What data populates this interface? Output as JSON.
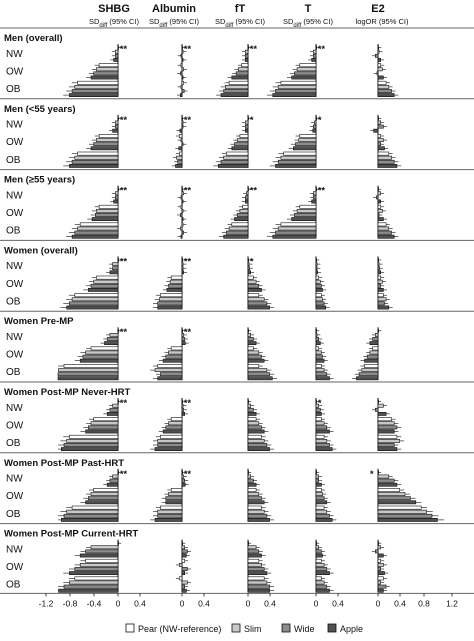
{
  "chart_data": {
    "type": "bar",
    "orientation": "horizontal",
    "columns": [
      {
        "id": "shbg",
        "title": "SHBG",
        "subtitle": "SD",
        "subtitle_sub": "diff",
        "subtitle_rest": " (95% CI)",
        "zero": 0,
        "scale": 1
      },
      {
        "id": "albumin",
        "title": "Albumin",
        "subtitle": "SD",
        "subtitle_sub": "diff",
        "subtitle_rest": " (95% CI)",
        "zero": 0,
        "scale": 1
      },
      {
        "id": "ft",
        "title": "fT",
        "subtitle": "SD",
        "subtitle_sub": "diff",
        "subtitle_rest": " (95% CI)",
        "zero": 0,
        "scale": 1
      },
      {
        "id": "t",
        "title": "T",
        "subtitle": "SD",
        "subtitle_sub": "diff",
        "subtitle_rest": " (95% CI)",
        "zero": 0,
        "scale": 1
      },
      {
        "id": "e2",
        "title": "E2",
        "subtitle": "logOR (95% CI)",
        "subtitle_sub": "",
        "subtitle_rest": "",
        "zero": 0,
        "scale": 1
      }
    ],
    "x_ticks": [
      "-1.2",
      "-0.8",
      "-0.4",
      "0",
      "0.4",
      "0.4",
      "0.8",
      "1.2"
    ],
    "x_tick_values": [
      -1.2,
      -0.8,
      -0.4,
      0,
      0.4,
      0.4,
      0.8,
      1.2
    ],
    "categories": [
      "NW",
      "OW",
      "OB"
    ],
    "shape_series": [
      "Pear (NW-reference)",
      "Slim",
      "Wide",
      "Apple"
    ],
    "legend": [
      {
        "label": "Pear (NW-reference)",
        "color": "#ffffff"
      },
      {
        "label": "Slim",
        "color": "#c8c8c8"
      },
      {
        "label": "Wide",
        "color": "#8c8c8c"
      },
      {
        "label": "Apple",
        "color": "#505050"
      }
    ],
    "panels": [
      {
        "title": "Men (overall)",
        "sig": [
          "**",
          "**",
          "**",
          "**",
          ""
        ],
        "values": {
          "shbg": [
            [
              0,
              -0.05,
              -0.05,
              -0.08
            ],
            [
              -0.35,
              -0.4,
              -0.45,
              -0.5
            ],
            [
              -0.75,
              -0.8,
              -0.85,
              -0.9
            ]
          ],
          "albumin": [
            [
              0,
              0.02,
              -0.02,
              0.02
            ],
            [
              -0.02,
              0.03,
              -0.03,
              0.02
            ],
            [
              0.03,
              -0.02,
              0.04,
              -0.03
            ]
          ],
          "ft": [
            [
              0,
              -0.05,
              -0.05,
              -0.05
            ],
            [
              -0.12,
              -0.18,
              -0.22,
              -0.3
            ],
            [
              -0.35,
              -0.42,
              -0.45,
              -0.5
            ]
          ],
          "t": [
            [
              0,
              -0.05,
              -0.05,
              -0.08
            ],
            [
              -0.3,
              -0.35,
              -0.4,
              -0.45
            ],
            [
              -0.65,
              -0.7,
              -0.75,
              -0.8
            ]
          ],
          "e2": [
            [
              0,
              0.02,
              -0.05,
              0.05
            ],
            [
              0.05,
              0.08,
              -0.02,
              0.1
            ],
            [
              0.15,
              0.2,
              0.25,
              0.3
            ]
          ]
        }
      },
      {
        "title": "Men (<55 years)",
        "sig": [
          "**",
          "**",
          "*",
          "*",
          ""
        ],
        "values": {
          "shbg": [
            [
              0,
              -0.05,
              -0.05,
              -0.1
            ],
            [
              -0.35,
              -0.4,
              -0.45,
              -0.5
            ],
            [
              -0.75,
              -0.8,
              -0.85,
              -0.9
            ]
          ],
          "albumin": [
            [
              0,
              0.02,
              0.02,
              -0.04
            ],
            [
              -0.05,
              -0.02,
              0.02,
              -0.06
            ],
            [
              -0.05,
              -0.1,
              -0.08,
              -0.12
            ]
          ],
          "ft": [
            [
              0,
              -0.05,
              -0.05,
              -0.05
            ],
            [
              -0.15,
              -0.2,
              -0.25,
              -0.3
            ],
            [
              -0.4,
              -0.45,
              -0.5,
              -0.55
            ]
          ],
          "t": [
            [
              0,
              -0.03,
              -0.05,
              -0.06
            ],
            [
              -0.3,
              -0.32,
              -0.38,
              -0.42
            ],
            [
              -0.6,
              -0.65,
              -0.7,
              -0.75
            ]
          ],
          "e2": [
            [
              0,
              0.05,
              0.1,
              -0.08
            ],
            [
              0.05,
              0.1,
              0.05,
              0.12
            ],
            [
              0.2,
              0.25,
              0.3,
              0.35
            ]
          ]
        }
      },
      {
        "title": "Men (≥55 years)",
        "sig": [
          "**",
          "**",
          "**",
          "**",
          ""
        ],
        "values": {
          "shbg": [
            [
              0,
              -0.05,
              -0.05,
              -0.08
            ],
            [
              -0.35,
              -0.4,
              -0.42,
              -0.48
            ],
            [
              -0.7,
              -0.75,
              -0.8,
              -0.85
            ]
          ],
          "albumin": [
            [
              0,
              0.03,
              -0.02,
              0.02
            ],
            [
              -0.02,
              0.02,
              -0.03,
              0.02
            ],
            [
              0.02,
              -0.03,
              0.03,
              -0.02
            ]
          ],
          "ft": [
            [
              0,
              -0.03,
              -0.05,
              -0.05
            ],
            [
              -0.1,
              -0.15,
              -0.2,
              -0.25
            ],
            [
              -0.3,
              -0.35,
              -0.4,
              -0.45
            ]
          ],
          "t": [
            [
              0,
              -0.05,
              -0.05,
              -0.08
            ],
            [
              -0.3,
              -0.35,
              -0.4,
              -0.45
            ],
            [
              -0.65,
              -0.7,
              -0.75,
              -0.8
            ]
          ],
          "e2": [
            [
              0,
              0.05,
              -0.03,
              0.05
            ],
            [
              0.05,
              0.08,
              0.02,
              0.1
            ],
            [
              0.15,
              0.2,
              0.25,
              0.3
            ]
          ]
        }
      },
      {
        "title": "Women (overall)",
        "sig": [
          "**",
          "**",
          "*",
          "",
          ""
        ],
        "values": {
          "shbg": [
            [
              0,
              -0.1,
              -0.1,
              -0.15
            ],
            [
              -0.4,
              -0.45,
              -0.5,
              -0.55
            ],
            [
              -0.8,
              -0.85,
              -0.9,
              -0.95
            ]
          ],
          "albumin": [
            [
              0,
              0.02,
              0.02,
              0.03
            ],
            [
              -0.2,
              -0.22,
              -0.25,
              -0.28
            ],
            [
              -0.4,
              -0.42,
              -0.45,
              -0.45
            ]
          ],
          "ft": [
            [
              0,
              0.02,
              0.03,
              0.05
            ],
            [
              0.1,
              0.15,
              0.2,
              0.25
            ],
            [
              0.2,
              0.3,
              0.35,
              0.4
            ]
          ],
          "t": [
            [
              0,
              0.02,
              0.02,
              0.03
            ],
            [
              0.05,
              0.08,
              0.1,
              0.12
            ],
            [
              0.1,
              0.12,
              0.15,
              0.18
            ]
          ],
          "e2": [
            [
              0,
              0.02,
              0.03,
              0.05
            ],
            [
              0.05,
              0.08,
              0.05,
              0.1
            ],
            [
              0.1,
              0.15,
              0.12,
              0.2
            ]
          ]
        }
      },
      {
        "title": "Women Pre-MP",
        "sig": [
          "**",
          "**",
          "",
          "",
          ""
        ],
        "values": {
          "shbg": [
            [
              0,
              -0.15,
              -0.2,
              -0.25
            ],
            [
              -0.5,
              -0.6,
              -0.65,
              -0.7
            ],
            [
              -1.0,
              -1.1,
              -1.15,
              -1.2
            ]
          ],
          "albumin": [
            [
              0,
              0.03,
              0.05,
              0.06
            ],
            [
              -0.2,
              -0.25,
              -0.3,
              -0.35
            ],
            [
              -0.45,
              -0.5,
              -0.4,
              -0.45
            ]
          ],
          "ft": [
            [
              0,
              0.05,
              0.1,
              0.15
            ],
            [
              0.1,
              0.2,
              0.25,
              0.3
            ],
            [
              0.2,
              0.35,
              0.4,
              0.45
            ]
          ],
          "t": [
            [
              0,
              0.02,
              0.05,
              0.08
            ],
            [
              0.05,
              0.1,
              0.12,
              0.15
            ],
            [
              0.1,
              0.15,
              0.2,
              0.25
            ]
          ],
          "e2": [
            [
              0,
              -0.05,
              -0.1,
              -0.15
            ],
            [
              -0.1,
              -0.15,
              -0.2,
              -0.25
            ],
            [
              -0.25,
              -0.3,
              -0.35,
              -0.4
            ]
          ]
        }
      },
      {
        "title": "Women Post-MP Never-HRT",
        "sig": [
          "**",
          "**",
          "",
          "*",
          ""
        ],
        "values": {
          "shbg": [
            [
              0,
              -0.1,
              -0.15,
              -0.2
            ],
            [
              -0.45,
              -0.5,
              -0.55,
              -0.6
            ],
            [
              -0.9,
              -0.95,
              -1.0,
              -1.05
            ]
          ],
          "albumin": [
            [
              0,
              0.02,
              0.03,
              0.05
            ],
            [
              -0.2,
              -0.25,
              -0.3,
              -0.35
            ],
            [
              -0.4,
              -0.45,
              -0.45,
              -0.5
            ]
          ],
          "ft": [
            [
              0,
              0.05,
              0.1,
              0.15
            ],
            [
              0.15,
              0.2,
              0.25,
              0.3
            ],
            [
              0.25,
              0.3,
              0.35,
              0.4
            ]
          ],
          "t": [
            [
              0,
              0.05,
              0.08,
              0.1
            ],
            [
              0.1,
              0.15,
              0.2,
              0.25
            ],
            [
              0.15,
              0.2,
              0.25,
              0.3
            ]
          ],
          "e2": [
            [
              0,
              0.1,
              -0.05,
              0.15
            ],
            [
              0.25,
              0.3,
              0.35,
              0.3
            ],
            [
              0.35,
              0.4,
              0.3,
              0.35
            ]
          ]
        }
      },
      {
        "title": "Women Post-MP Past-HRT",
        "sig": [
          "**",
          "**",
          "",
          "",
          "*"
        ],
        "values": {
          "shbg": [
            [
              0,
              -0.1,
              -0.15,
              -0.2
            ],
            [
              -0.45,
              -0.5,
              -0.55,
              -0.6
            ],
            [
              -0.85,
              -0.95,
              -1.0,
              -1.05
            ]
          ],
          "albumin": [
            [
              0,
              0.03,
              0.05,
              0.06
            ],
            [
              -0.2,
              -0.25,
              -0.3,
              -0.3
            ],
            [
              -0.4,
              -0.45,
              -0.45,
              -0.5
            ]
          ],
          "ft": [
            [
              0,
              0.05,
              0.1,
              0.15
            ],
            [
              0.15,
              0.2,
              0.25,
              0.3
            ],
            [
              0.25,
              0.3,
              0.35,
              0.4
            ]
          ],
          "t": [
            [
              0,
              0.05,
              0.05,
              0.1
            ],
            [
              0.1,
              0.12,
              0.15,
              0.2
            ],
            [
              0.15,
              0.2,
              0.25,
              0.3
            ]
          ],
          "e2": [
            [
              0,
              0.2,
              0.3,
              0.35
            ],
            [
              0.4,
              0.5,
              0.6,
              0.7
            ],
            [
              0.8,
              0.9,
              1.0,
              1.1
            ]
          ]
        }
      },
      {
        "title": "Women Post-MP Current-HRT",
        "sig": [
          "",
          "",
          "",
          "",
          ""
        ],
        "values": {
          "shbg": [
            [
              0,
              -0.5,
              -0.6,
              -0.7
            ],
            [
              -0.6,
              -0.7,
              -0.8,
              -0.9
            ],
            [
              -0.8,
              -0.9,
              -1.0,
              -1.1
            ]
          ],
          "albumin": [
            [
              0,
              0.05,
              0.1,
              0.08
            ],
            [
              0.05,
              -0.05,
              0.1,
              0.05
            ],
            [
              -0.05,
              0.1,
              0.05,
              0.08
            ]
          ],
          "ft": [
            [
              0,
              0.15,
              0.2,
              0.25
            ],
            [
              0.2,
              0.25,
              0.3,
              0.35
            ],
            [
              0.3,
              0.35,
              0.4,
              0.4
            ]
          ],
          "t": [
            [
              0,
              0.05,
              0.1,
              0.12
            ],
            [
              0.1,
              0.15,
              0.2,
              0.25
            ],
            [
              0.1,
              0.15,
              0.2,
              0.25
            ]
          ],
          "e2": [
            [
              0,
              0.05,
              -0.05,
              0.1
            ],
            [
              0.05,
              0.1,
              0.05,
              0.12
            ],
            [
              0.1,
              0.05,
              0.15,
              0.1
            ]
          ]
        }
      }
    ]
  }
}
